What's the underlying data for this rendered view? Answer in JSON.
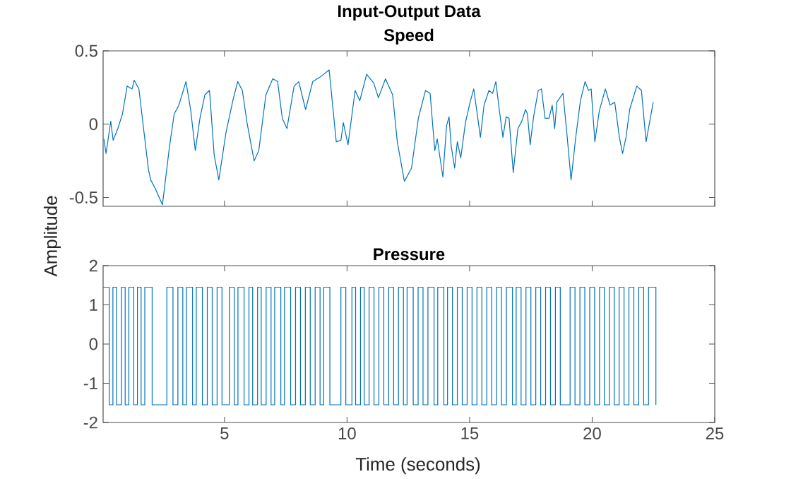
{
  "chart_data": [
    {
      "type": "line",
      "title": "Input-Output Data",
      "subtitle": "Speed",
      "ylabel": "Amplitude",
      "color": "#0072bd",
      "tick_labels": "y",
      "xlim": [
        0.05,
        25
      ],
      "ylim": [
        -0.56,
        0.5
      ],
      "xticks": [
        5,
        10,
        15,
        20,
        25
      ],
      "yticks": [
        -0.5,
        0,
        0.5
      ],
      "x": [
        0.08,
        0.17,
        0.36,
        0.46,
        0.65,
        0.84,
        1.03,
        1.23,
        1.32,
        1.51,
        1.7,
        1.9,
        1.99,
        2.18,
        2.47,
        2.76,
        2.95,
        3.14,
        3.43,
        3.62,
        3.81,
        4.0,
        4.2,
        4.39,
        4.58,
        4.77,
        5.06,
        5.34,
        5.54,
        5.73,
        5.92,
        6.21,
        6.4,
        6.69,
        6.97,
        7.17,
        7.36,
        7.55,
        7.84,
        8.03,
        8.31,
        8.6,
        8.89,
        9.27,
        9.56,
        9.75,
        9.85,
        10.04,
        10.33,
        10.52,
        10.8,
        11.09,
        11.28,
        11.57,
        11.86,
        12.05,
        12.34,
        12.63,
        12.91,
        13.2,
        13.39,
        13.58,
        13.68,
        13.91,
        14.06,
        14.16,
        14.25,
        14.39,
        14.5,
        14.64,
        14.83,
        15.02,
        15.17,
        15.36,
        15.44,
        15.59,
        15.79,
        15.94,
        16.07,
        16.21,
        16.36,
        16.49,
        16.61,
        16.78,
        16.97,
        17.13,
        17.28,
        17.36,
        17.47,
        17.61,
        17.8,
        17.93,
        18.08,
        18.24,
        18.37,
        18.47,
        18.56,
        18.81,
        18.95,
        19.14,
        19.33,
        19.52,
        19.71,
        19.85,
        19.96,
        20.11,
        20.29,
        20.54,
        20.73,
        20.92,
        21.11,
        21.24,
        21.38,
        21.53,
        21.82,
        22.01,
        22.2,
        22.34,
        22.49
      ],
      "values": [
        -0.1,
        -0.2,
        0.02,
        -0.11,
        -0.03,
        0.07,
        0.26,
        0.24,
        0.3,
        0.24,
        -0.03,
        -0.31,
        -0.38,
        -0.44,
        -0.55,
        -0.15,
        0.07,
        0.13,
        0.29,
        0.1,
        -0.18,
        0.04,
        0.2,
        0.23,
        -0.21,
        -0.38,
        -0.06,
        0.16,
        0.29,
        0.23,
        0.01,
        -0.25,
        -0.18,
        0.2,
        0.31,
        0.29,
        0.04,
        -0.03,
        0.26,
        0.29,
        0.1,
        0.29,
        0.32,
        0.37,
        -0.12,
        -0.11,
        0.01,
        -0.14,
        0.23,
        0.16,
        0.34,
        0.28,
        0.18,
        0.31,
        0.2,
        -0.12,
        -0.39,
        -0.3,
        0.04,
        0.23,
        0.21,
        -0.18,
        -0.1,
        -0.36,
        -0.01,
        0.05,
        -0.15,
        -0.3,
        -0.12,
        -0.23,
        0.01,
        0.15,
        0.24,
        0.01,
        -0.09,
        0.13,
        0.23,
        0.21,
        0.29,
        0.1,
        -0.09,
        0.05,
        0.04,
        -0.33,
        -0.03,
        0.02,
        0.1,
        0.07,
        -0.14,
        0.05,
        0.23,
        0.24,
        0.04,
        0.04,
        0.13,
        -0.03,
        0.15,
        0.21,
        -0.03,
        -0.38,
        -0.09,
        0.16,
        0.29,
        0.23,
        0.24,
        -0.12,
        0.09,
        0.24,
        0.13,
        0.15,
        -0.09,
        -0.2,
        -0.09,
        0.1,
        0.26,
        0.23,
        -0.12,
        0.01,
        0.15
      ]
    },
    {
      "type": "step",
      "title": "Pressure",
      "xlabel": "Time (seconds)",
      "color": "#0072bd",
      "xlim": [
        0.05,
        25
      ],
      "ylim": [
        -2,
        2
      ],
      "xticks": [
        5,
        10,
        15,
        20,
        25
      ],
      "yticks": [
        -2,
        -1,
        0,
        1,
        2
      ],
      "x": [
        0.05,
        0.3,
        0.45,
        0.6,
        0.8,
        0.95,
        1.1,
        1.3,
        1.45,
        1.6,
        1.75,
        2.05,
        2.65,
        2.9,
        3.1,
        3.3,
        3.45,
        3.7,
        3.85,
        4.1,
        4.3,
        4.5,
        4.7,
        4.9,
        5.2,
        5.4,
        5.55,
        5.8,
        6.0,
        6.15,
        6.35,
        6.5,
        6.7,
        6.9,
        7.05,
        7.3,
        7.45,
        7.7,
        7.9,
        8.1,
        8.3,
        8.5,
        8.7,
        8.9,
        9.05,
        9.3,
        9.75,
        9.95,
        10.2,
        10.35,
        10.55,
        10.7,
        10.9,
        11.1,
        11.3,
        11.5,
        11.7,
        11.9,
        12.1,
        12.3,
        12.45,
        12.7,
        12.9,
        13.1,
        13.3,
        13.55,
        13.7,
        13.95,
        14.1,
        14.3,
        14.5,
        14.7,
        14.9,
        15.1,
        15.3,
        15.5,
        15.7,
        15.9,
        16.1,
        16.3,
        16.5,
        16.75,
        16.9,
        17.1,
        17.3,
        17.5,
        17.7,
        17.9,
        18.1,
        18.3,
        18.5,
        18.7,
        19.1,
        19.3,
        19.5,
        19.7,
        19.9,
        20.1,
        20.3,
        20.5,
        20.7,
        20.9,
        21.1,
        21.3,
        21.5,
        21.7,
        21.9,
        22.1,
        22.3,
        22.6
      ],
      "values": [
        1.45,
        -1.55,
        1.45,
        -1.55,
        1.45,
        -1.55,
        1.45,
        -1.55,
        1.45,
        -1.55,
        1.45,
        -1.55,
        1.45,
        -1.55,
        1.45,
        -1.55,
        1.45,
        -1.55,
        1.45,
        -1.55,
        1.45,
        -1.55,
        1.45,
        -1.55,
        1.45,
        -1.55,
        1.45,
        -1.55,
        1.45,
        -1.55,
        1.45,
        -1.55,
        1.45,
        -1.55,
        1.45,
        -1.55,
        1.45,
        -1.55,
        1.45,
        -1.55,
        1.45,
        -1.55,
        1.45,
        -1.55,
        1.45,
        -1.55,
        1.45,
        -1.55,
        1.45,
        -1.55,
        1.45,
        -1.55,
        1.45,
        -1.55,
        1.45,
        -1.55,
        1.45,
        -1.55,
        1.45,
        -1.55,
        1.45,
        -1.55,
        1.45,
        -1.55,
        1.45,
        -1.55,
        1.45,
        -1.55,
        1.45,
        -1.55,
        1.45,
        -1.55,
        1.45,
        -1.55,
        1.45,
        -1.55,
        1.45,
        -1.55,
        1.45,
        -1.55,
        1.45,
        -1.55,
        1.45,
        -1.55,
        1.45,
        -1.55,
        1.45,
        -1.55,
        1.45,
        -1.55,
        1.45,
        -1.55,
        1.45,
        -1.55,
        1.45,
        -1.55,
        1.45,
        -1.55,
        1.45,
        -1.55,
        1.45,
        -1.55,
        1.45,
        -1.55,
        1.45,
        -1.55,
        1.45,
        -1.55,
        1.45,
        -1.55
      ]
    }
  ]
}
